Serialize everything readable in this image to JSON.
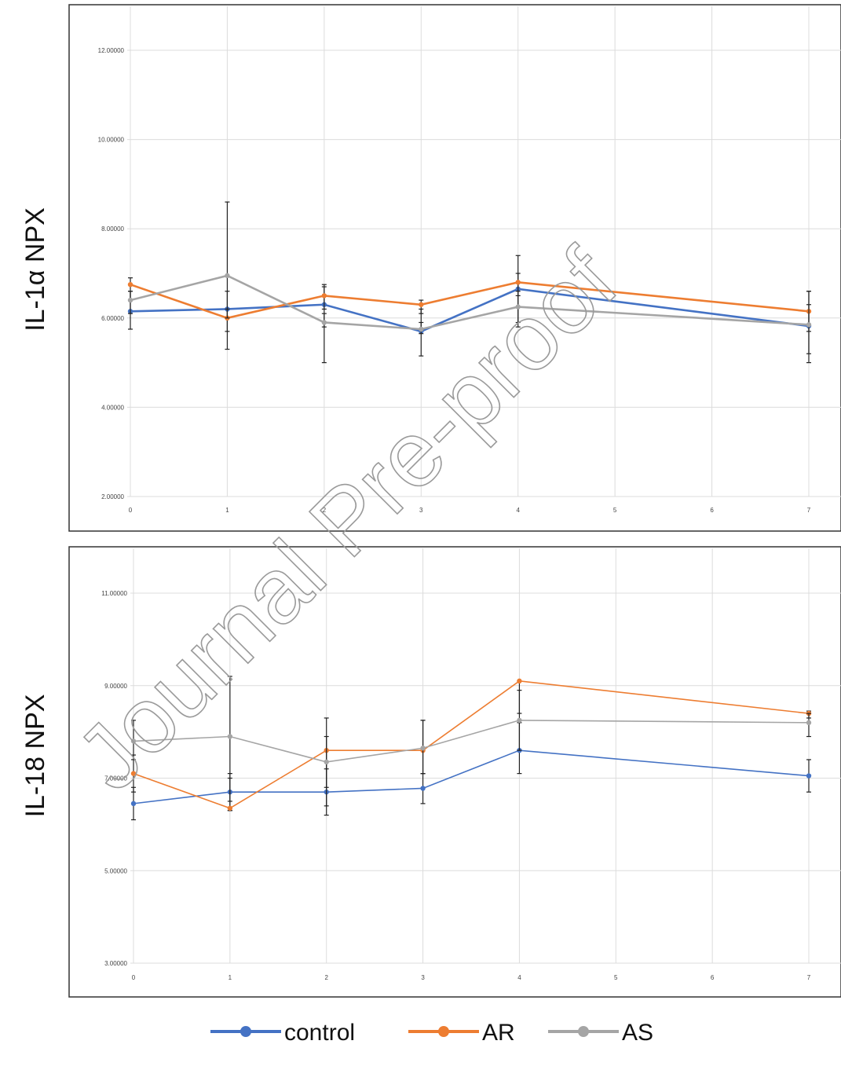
{
  "chart_data": [
    {
      "type": "line",
      "ylabel": "IL-1α NPX",
      "x": [
        0,
        1,
        2,
        3,
        4,
        7
      ],
      "x_ticks": [
        "0",
        "1",
        "2",
        "3",
        "4",
        "5",
        "6",
        "7"
      ],
      "xlim": [
        0,
        7
      ],
      "ylim": [
        2,
        12.5
      ],
      "y_ticks": [
        "2.00000",
        "4.00000",
        "6.00000",
        "8.00000",
        "10.00000",
        "12.00000"
      ],
      "y_tick_values": [
        2,
        4,
        6,
        8,
        10,
        12
      ],
      "grid": true,
      "series": [
        {
          "name": "control",
          "values": [
            6.15,
            6.2,
            6.3,
            5.7,
            6.65,
            5.82
          ],
          "error_low": [
            5.75,
            5.3,
            5.0,
            5.15,
            5.8,
            5.0
          ],
          "error_high": [
            6.6,
            6.6,
            6.7,
            6.2,
            7.4,
            6.6
          ]
        },
        {
          "name": "AR",
          "values": [
            6.75,
            6.0,
            6.5,
            6.3,
            6.8,
            6.15
          ],
          "error_low": [
            6.4,
            5.7,
            6.2,
            6.1,
            6.5,
            5.7
          ],
          "error_high": [
            6.9,
            6.2,
            6.75,
            6.4,
            7.0,
            6.6
          ]
        },
        {
          "name": "AS",
          "values": [
            6.4,
            6.95,
            5.9,
            5.75,
            6.25,
            5.85
          ],
          "error_low": [
            6.1,
            6.0,
            5.8,
            5.65,
            5.9,
            5.2
          ],
          "error_high": [
            6.6,
            8.6,
            6.1,
            5.9,
            6.6,
            6.3
          ]
        }
      ]
    },
    {
      "type": "line",
      "ylabel": "IL-18 NPX",
      "x": [
        0,
        1,
        2,
        3,
        4,
        7
      ],
      "x_ticks": [
        "0",
        "1",
        "2",
        "3",
        "4",
        "5",
        "6",
        "7"
      ],
      "xlim": [
        0,
        7
      ],
      "ylim": [
        3,
        12
      ],
      "y_ticks": [
        "3.00000",
        "5.00000",
        "7.00000",
        "9.00000",
        "11.00000"
      ],
      "y_tick_values": [
        3,
        5,
        7,
        9,
        11
      ],
      "grid": true,
      "series": [
        {
          "name": "control",
          "values": [
            6.45,
            6.7,
            6.7,
            6.78,
            7.6,
            7.05
          ],
          "error_low": [
            6.1,
            6.3,
            6.2,
            6.45,
            7.1,
            6.7
          ],
          "error_high": [
            6.8,
            7.1,
            7.2,
            7.1,
            8.2,
            7.4
          ]
        },
        {
          "name": "AR",
          "values": [
            7.1,
            6.35,
            7.6,
            7.6,
            9.1,
            8.4
          ],
          "error_low": [
            6.7,
            6.3,
            6.4,
            7.1,
            8.4,
            8.3
          ],
          "error_high": [
            7.5,
            7.0,
            8.3,
            8.25,
            9.1,
            8.45
          ]
        },
        {
          "name": "AS",
          "values": [
            7.8,
            7.9,
            7.35,
            7.65,
            8.25,
            8.2
          ],
          "error_low": [
            7.4,
            6.5,
            6.8,
            7.1,
            7.6,
            7.9
          ],
          "error_high": [
            8.25,
            9.2,
            7.9,
            8.25,
            8.9,
            8.4
          ]
        }
      ]
    }
  ],
  "legend": {
    "placement": "bottom-center",
    "entries": [
      {
        "label": "control",
        "color": "#4472C4"
      },
      {
        "label": "AR",
        "color": "#ED7D31"
      },
      {
        "label": "AS",
        "color": "#A5A5A5"
      }
    ]
  },
  "colors": {
    "control": "#4472C4",
    "AR": "#ED7D31",
    "AS": "#A5A5A5",
    "grid": "#dcdcdc",
    "frame": "#333333"
  },
  "watermark": "Journal Pre-proof"
}
